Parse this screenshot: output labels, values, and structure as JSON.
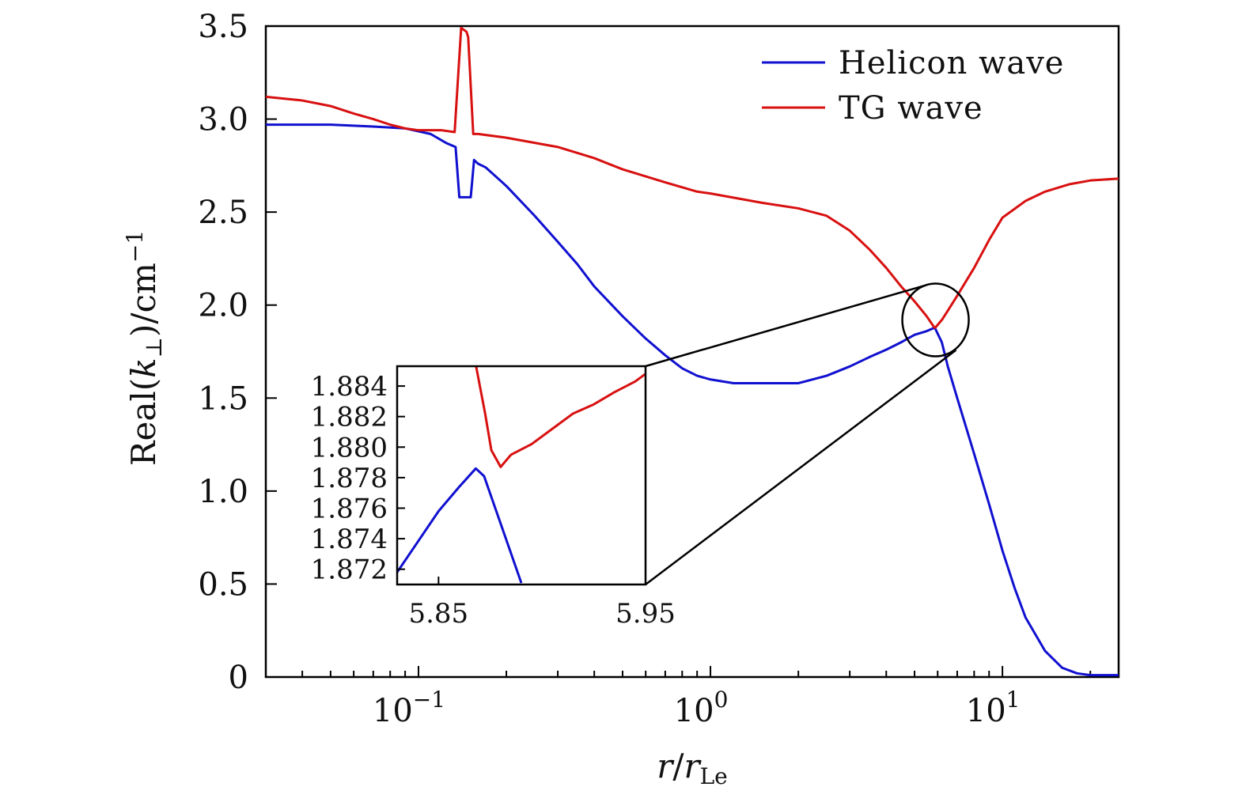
{
  "chart_data": {
    "type": "line",
    "xscale": "log",
    "xlim": [
      0.03,
      25
    ],
    "ylim": [
      0,
      3.5
    ],
    "xlabel": "r/r_Le",
    "ylabel": "Real(k_⊥)/cm^−1",
    "ylabel_parts": {
      "pre": "Real(",
      "var": "k",
      "sub": "⊥",
      "post": ")/cm",
      "sup": "−1"
    },
    "xlabel_parts": {
      "var": "r",
      "slash": "/",
      "var2": "r",
      "sub": "Le"
    },
    "y_ticks": [
      "0",
      "0.5",
      "1.0",
      "1.5",
      "2.0",
      "2.5",
      "3.0",
      "3.5"
    ],
    "y_tick_values": [
      0,
      0.5,
      1.0,
      1.5,
      2.0,
      2.5,
      3.0,
      3.5
    ],
    "x_major_ticks": [
      {
        "value": 0.1,
        "base": "10",
        "exp": "−1"
      },
      {
        "value": 1,
        "base": "10",
        "exp": "0"
      },
      {
        "value": 10,
        "base": "10",
        "exp": "1"
      }
    ],
    "legend_position": "top-right",
    "series": [
      {
        "name": "Helicon wave",
        "color": "#1010d0",
        "x": [
          0.03,
          0.05,
          0.07,
          0.09,
          0.11,
          0.125,
          0.134,
          0.138,
          0.145,
          0.151,
          0.155,
          0.16,
          0.17,
          0.2,
          0.25,
          0.3,
          0.35,
          0.4,
          0.5,
          0.6,
          0.7,
          0.8,
          0.9,
          1.0,
          1.2,
          1.5,
          2.0,
          2.5,
          3.0,
          3.5,
          4.0,
          4.5,
          5.0,
          5.5,
          5.85,
          5.9,
          6.2,
          6.5,
          7.0,
          8.0,
          9.0,
          10.0,
          11.0,
          12.0,
          14.0,
          16.0,
          18.0,
          20.0,
          25.0
        ],
        "y": [
          2.97,
          2.97,
          2.96,
          2.95,
          2.92,
          2.87,
          2.85,
          2.58,
          2.58,
          2.58,
          2.78,
          2.76,
          2.74,
          2.64,
          2.48,
          2.34,
          2.22,
          2.1,
          1.94,
          1.82,
          1.73,
          1.66,
          1.62,
          1.6,
          1.58,
          1.58,
          1.58,
          1.62,
          1.67,
          1.72,
          1.76,
          1.8,
          1.84,
          1.86,
          1.878,
          1.87,
          1.8,
          1.67,
          1.5,
          1.2,
          0.93,
          0.68,
          0.48,
          0.32,
          0.14,
          0.05,
          0.02,
          0.01,
          0.01
        ]
      },
      {
        "name": "TG wave",
        "color": "#d81010",
        "x": [
          0.03,
          0.04,
          0.05,
          0.06,
          0.07,
          0.08,
          0.09,
          0.1,
          0.12,
          0.133,
          0.14,
          0.146,
          0.148,
          0.154,
          0.157,
          0.16,
          0.2,
          0.3,
          0.4,
          0.5,
          0.7,
          0.9,
          1.0,
          1.5,
          2.0,
          2.5,
          3.0,
          3.5,
          4.0,
          4.5,
          5.0,
          5.5,
          5.85,
          5.9,
          6.2,
          6.5,
          7.0,
          8.0,
          9.0,
          10.0,
          12.0,
          14.0,
          17.0,
          20.0,
          25.0
        ],
        "y": [
          3.12,
          3.1,
          3.07,
          3.03,
          3.0,
          2.97,
          2.95,
          2.94,
          2.94,
          2.93,
          3.49,
          3.47,
          3.44,
          2.92,
          2.92,
          2.92,
          2.9,
          2.85,
          2.79,
          2.73,
          2.66,
          2.61,
          2.6,
          2.55,
          2.52,
          2.48,
          2.4,
          2.3,
          2.2,
          2.1,
          2.02,
          1.94,
          1.8785,
          1.88,
          1.92,
          1.97,
          2.05,
          2.2,
          2.35,
          2.47,
          2.56,
          2.61,
          2.65,
          2.67,
          2.68
        ]
      }
    ],
    "annotation": {
      "type": "zoom-circle",
      "center_x": 5.9,
      "center_y": 1.92
    },
    "inset": {
      "type": "line",
      "xlim": [
        5.83,
        5.95
      ],
      "ylim": [
        1.871,
        1.8853
      ],
      "x_ticks": [
        "5.85",
        "5.95"
      ],
      "x_tick_values": [
        5.85,
        5.95
      ],
      "y_ticks": [
        "1.872",
        "1.874",
        "1.876",
        "1.878",
        "1.880",
        "1.882",
        "1.884"
      ],
      "y_tick_values": [
        1.872,
        1.874,
        1.876,
        1.878,
        1.88,
        1.882,
        1.884
      ],
      "series": [
        {
          "name": "Helicon wave",
          "color": "#1010d0",
          "x": [
            5.83,
            5.84,
            5.85,
            5.86,
            5.868,
            5.872,
            5.89
          ],
          "y": [
            1.8718,
            1.8738,
            1.8758,
            1.8774,
            1.8786,
            1.8781,
            1.8711
          ]
        },
        {
          "name": "TG wave",
          "color": "#d81010",
          "x": [
            5.868,
            5.8725,
            5.8755,
            5.88,
            5.885,
            5.895,
            5.905,
            5.915,
            5.925,
            5.935,
            5.945,
            5.95
          ],
          "y": [
            1.8854,
            1.8822,
            1.8798,
            1.8787,
            1.8795,
            1.8802,
            1.8812,
            1.8822,
            1.8828,
            1.8836,
            1.8843,
            1.8848
          ]
        }
      ]
    }
  }
}
